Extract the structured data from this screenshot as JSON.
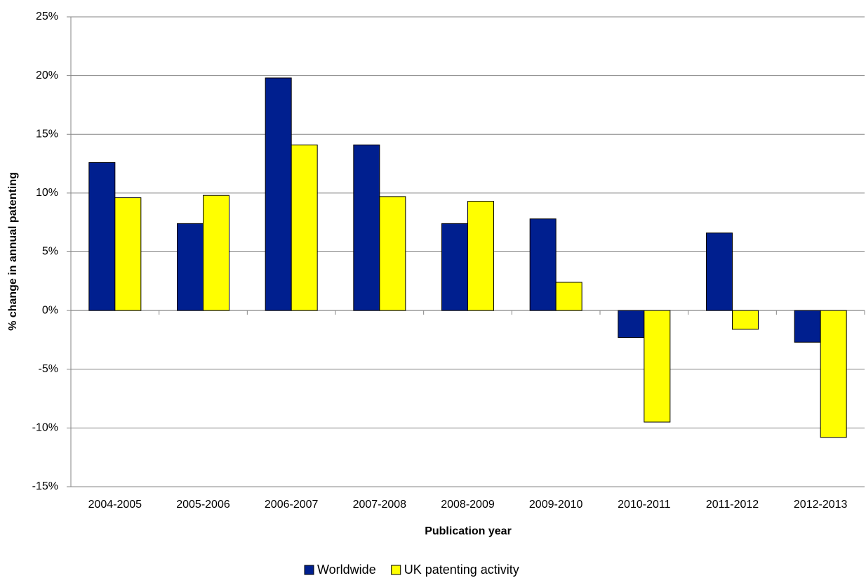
{
  "chart_data": {
    "type": "bar",
    "x_label": "Publication year",
    "y_label": "% change in annual patenting",
    "categories": [
      "2004-2005",
      "2005-2006",
      "2006-2007",
      "2007-2008",
      "2008-2009",
      "2009-2010",
      "2010-2011",
      "2011-2012",
      "2012-2013"
    ],
    "series": [
      {
        "name": "Worldwide",
        "color": "#001f8f",
        "values": [
          12.6,
          7.4,
          19.8,
          14.1,
          7.4,
          7.8,
          -2.3,
          6.6,
          -2.7
        ]
      },
      {
        "name": "UK patenting activity",
        "color": "#ffff00",
        "values": [
          9.6,
          9.8,
          14.1,
          9.7,
          9.3,
          2.4,
          -9.5,
          -1.6,
          -10.8
        ]
      }
    ],
    "ylim": [
      -15,
      25
    ],
    "yticks": [
      {
        "value": -15,
        "label": "-15%"
      },
      {
        "value": -10,
        "label": "-10%"
      },
      {
        "value": -5,
        "label": "-5%"
      },
      {
        "value": 0,
        "label": "0%"
      },
      {
        "value": 5,
        "label": "5%"
      },
      {
        "value": 10,
        "label": "10%"
      },
      {
        "value": 15,
        "label": "15%"
      },
      {
        "value": 20,
        "label": "20%"
      },
      {
        "value": 25,
        "label": "25%"
      }
    ],
    "grid": true,
    "legend": "bottom"
  }
}
